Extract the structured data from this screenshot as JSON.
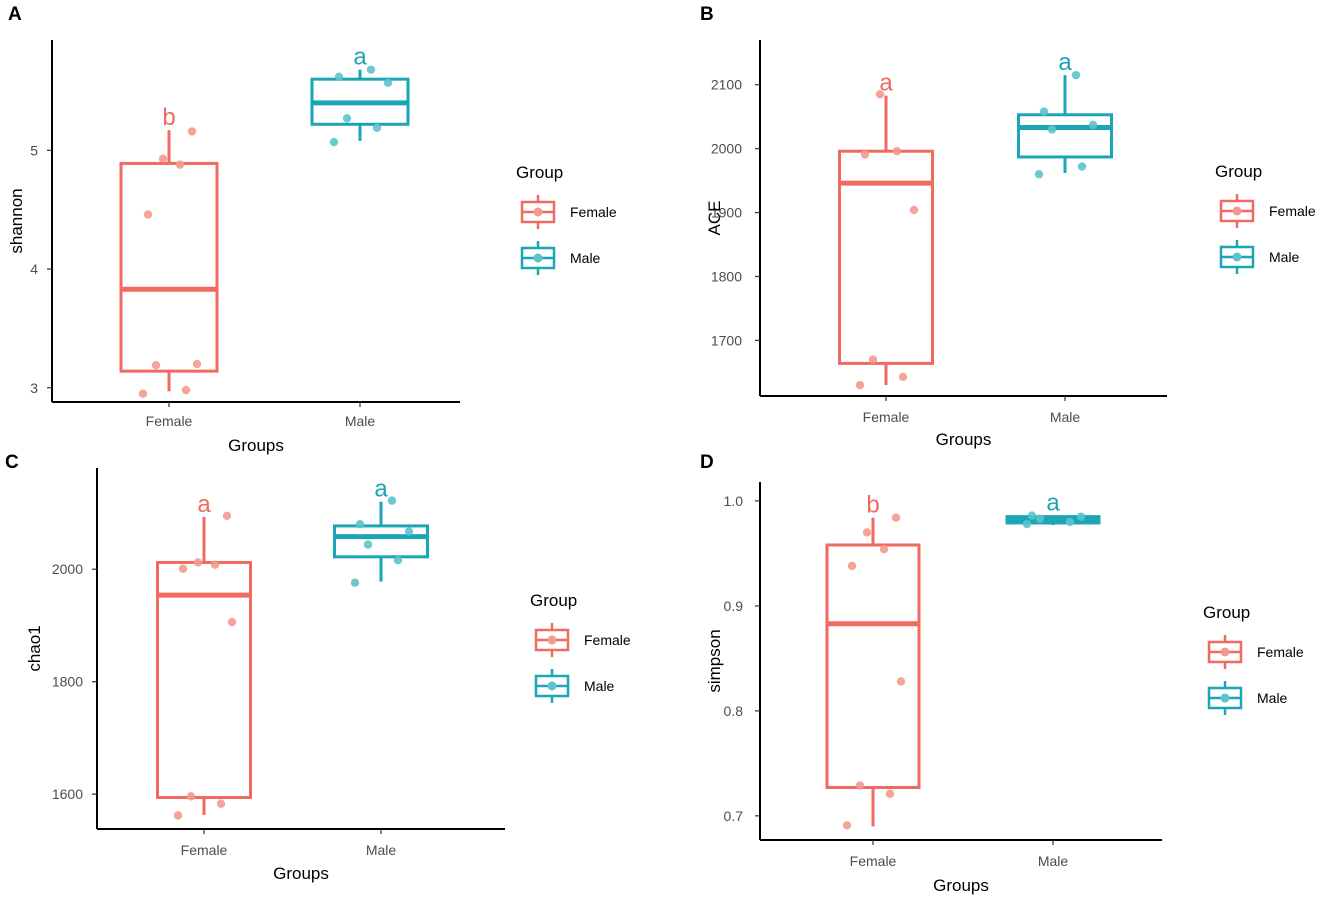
{
  "colors": {
    "female": "#f06a60",
    "male": "#1aa6b5",
    "female_point": "#f39a8e",
    "male_point": "#5cc3cb"
  },
  "legend": {
    "title": "Group",
    "items": [
      "Female",
      "Male"
    ]
  },
  "chart_data": [
    {
      "panel": "A",
      "type": "box",
      "xlabel": "Groups",
      "ylabel": "shannon",
      "categories": [
        "Female",
        "Male"
      ],
      "ylim": [
        2.88,
        5.93
      ],
      "yticks": [
        3,
        4,
        5
      ],
      "boxes": [
        {
          "group": "Female",
          "whisker_low": 2.97,
          "q1": 3.14,
          "median": 3.83,
          "q3": 4.89,
          "whisker_high": 5.17,
          "sig": "b",
          "points": [
            2.95,
            2.98,
            3.19,
            3.2,
            4.46,
            4.88,
            4.93,
            5.16
          ]
        },
        {
          "group": "Male",
          "whisker_low": 5.08,
          "q1": 5.22,
          "median": 5.4,
          "q3": 5.6,
          "whisker_high": 5.68,
          "sig": "a",
          "points": [
            5.07,
            5.19,
            5.27,
            5.57,
            5.62,
            5.68
          ]
        }
      ]
    },
    {
      "panel": "B",
      "type": "box",
      "xlabel": "Groups",
      "ylabel": "ACE",
      "categories": [
        "Female",
        "Male"
      ],
      "ylim": [
        1613,
        2170
      ],
      "yticks": [
        1700,
        1800,
        1900,
        2000,
        2100
      ],
      "boxes": [
        {
          "group": "Female",
          "whisker_low": 1630,
          "q1": 1664,
          "median": 1946,
          "q3": 1996,
          "whisker_high": 2083,
          "sig": "a",
          "points": [
            1630,
            1643,
            1670,
            1904,
            1991,
            1996,
            2085
          ]
        },
        {
          "group": "Male",
          "whisker_low": 1962,
          "q1": 1987,
          "median": 2033,
          "q3": 2053,
          "whisker_high": 2115,
          "sig": "a",
          "points": [
            1960,
            1972,
            2030,
            2037,
            2058,
            2115
          ]
        }
      ]
    },
    {
      "panel": "C",
      "type": "box",
      "xlabel": "Groups",
      "ylabel": "chao1",
      "categories": [
        "Female",
        "Male"
      ],
      "ylim": [
        1538,
        2180
      ],
      "yticks": [
        1600,
        1800,
        2000
      ],
      "boxes": [
        {
          "group": "Female",
          "whisker_low": 1563,
          "q1": 1594,
          "median": 1954,
          "q3": 2012,
          "whisker_high": 2093,
          "sig": "a",
          "points": [
            1562,
            1583,
            1596,
            1906,
            2001,
            2008,
            2012,
            2095
          ]
        },
        {
          "group": "Male",
          "whisker_low": 1978,
          "q1": 2022,
          "median": 2058,
          "q3": 2077,
          "whisker_high": 2120,
          "sig": "a",
          "points": [
            1976,
            2016,
            2044,
            2067,
            2080,
            2122
          ]
        }
      ]
    },
    {
      "panel": "D",
      "type": "box",
      "xlabel": "Groups",
      "ylabel": "simpson",
      "categories": [
        "Female",
        "Male"
      ],
      "ylim": [
        0.677,
        1.018
      ],
      "yticks": [
        0.7,
        0.8,
        0.9,
        1.0
      ],
      "ytick_labels": [
        "0.7",
        "0.8",
        "0.9",
        "1.0"
      ],
      "boxes": [
        {
          "group": "Female",
          "whisker_low": 0.69,
          "q1": 0.727,
          "median": 0.883,
          "q3": 0.958,
          "whisker_high": 0.984,
          "sig": "b",
          "points": [
            0.691,
            0.721,
            0.729,
            0.828,
            0.938,
            0.954,
            0.97,
            0.984
          ]
        },
        {
          "group": "Male",
          "whisker_low": 0.977,
          "q1": 0.979,
          "median": 0.982,
          "q3": 0.985,
          "whisker_high": 0.986,
          "sig": "a",
          "points": [
            0.978,
            0.98,
            0.983,
            0.985,
            0.986
          ]
        }
      ]
    }
  ]
}
